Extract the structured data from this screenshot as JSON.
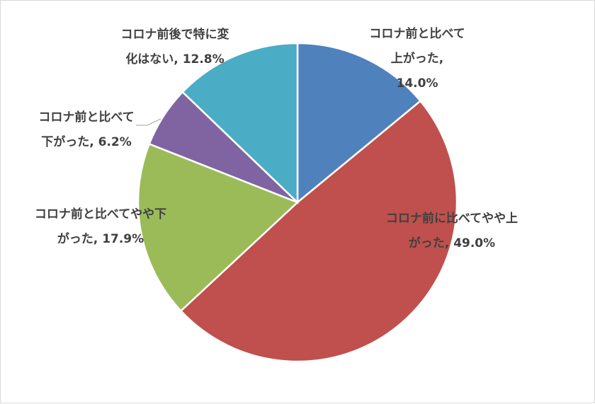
{
  "chart_data": {
    "type": "pie",
    "title": "",
    "start_angle_deg": 0,
    "direction": "clockwise",
    "legend": "none",
    "slices": [
      {
        "label": "コロナ前と比べて上がった, 14.0%",
        "value": 14.0,
        "color": "#4f81bd",
        "label_lines": [
          "コロナ前と比べて",
          "上がった,",
          "14.0%"
        ]
      },
      {
        "label": "コロナ前に比べてやや上がった, 49.0%",
        "value": 49.0,
        "color": "#c0504d",
        "label_lines": [
          "コロナ前に比べてやや上",
          "がった, 49.0%"
        ]
      },
      {
        "label": "コロナ前と比べてやや下がった, 17.9%",
        "value": 17.9,
        "color": "#9bbb59",
        "label_lines": [
          "コロナ前と比べてやや下",
          "がった, 17.9%"
        ]
      },
      {
        "label": "コロナ前と比べて下がった, 6.2%",
        "value": 6.2,
        "color": "#8064a2",
        "label_lines": [
          "コロナ前と比べて",
          "下がった, 6.2%"
        ]
      },
      {
        "label": "コロナ前後で特に変化はない, 12.8%",
        "value": 12.8,
        "color": "#4bacc6",
        "label_lines": [
          "コロナ前後で特に変",
          "化はない, 12.8%"
        ]
      }
    ]
  }
}
